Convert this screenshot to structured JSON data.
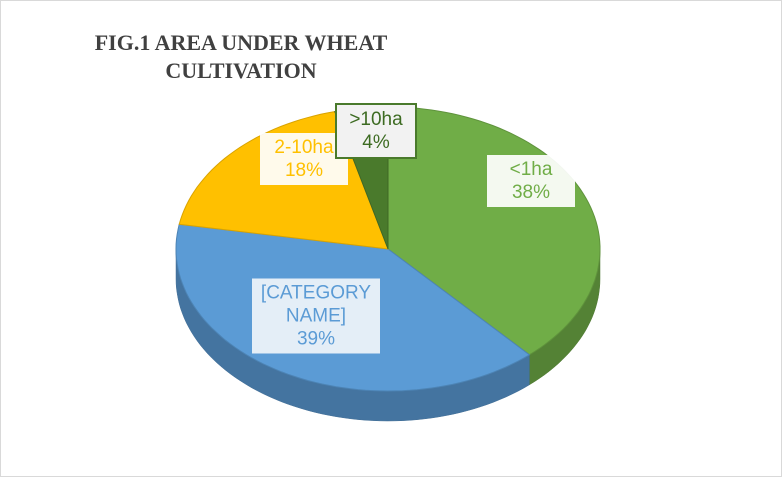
{
  "chart_data": {
    "type": "pie",
    "title": "FIG.1 AREA UNDER WHEAT CULTIVATION",
    "categories": [
      "<1ha",
      "[CATEGORY NAME]",
      "2-10ha",
      ">10ha"
    ],
    "values": [
      38,
      39,
      18,
      4
    ],
    "value_labels": [
      "38%",
      "39%",
      "18%",
      "4%"
    ],
    "colors": [
      "#70ad47",
      "#5b9bd5",
      "#ffc000",
      "#4a7a2c"
    ]
  }
}
